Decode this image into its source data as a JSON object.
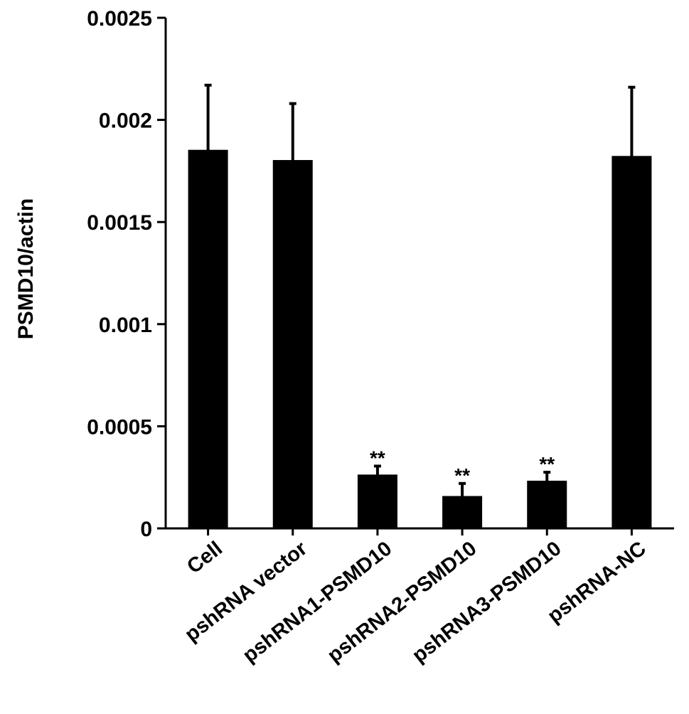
{
  "chart_data": {
    "type": "bar",
    "title": "",
    "xlabel": "",
    "ylabel": "PSMD10/actin",
    "ylim": [
      0,
      0.0025
    ],
    "yticks": [
      "0",
      "0.0005",
      "0.001",
      "0.0015",
      "0.002",
      "0.0025"
    ],
    "categories": [
      "Cell",
      "pshRNA vector",
      "pshRNA1-PSMD10",
      "pshRNA2-PSMD10",
      "pshRNA3-PSMD10",
      "pshRNA-NC"
    ],
    "values": [
      0.00185,
      0.0018,
      0.00026,
      0.000155,
      0.00023,
      0.00182
    ],
    "errors": [
      0.00032,
      0.00028,
      4.5e-05,
      6.5e-05,
      4.5e-05,
      0.00034
    ],
    "annotations": [
      "",
      "",
      "**",
      "**",
      "**",
      ""
    ],
    "bar_color": "#000000",
    "grid": false,
    "legend": "none"
  }
}
